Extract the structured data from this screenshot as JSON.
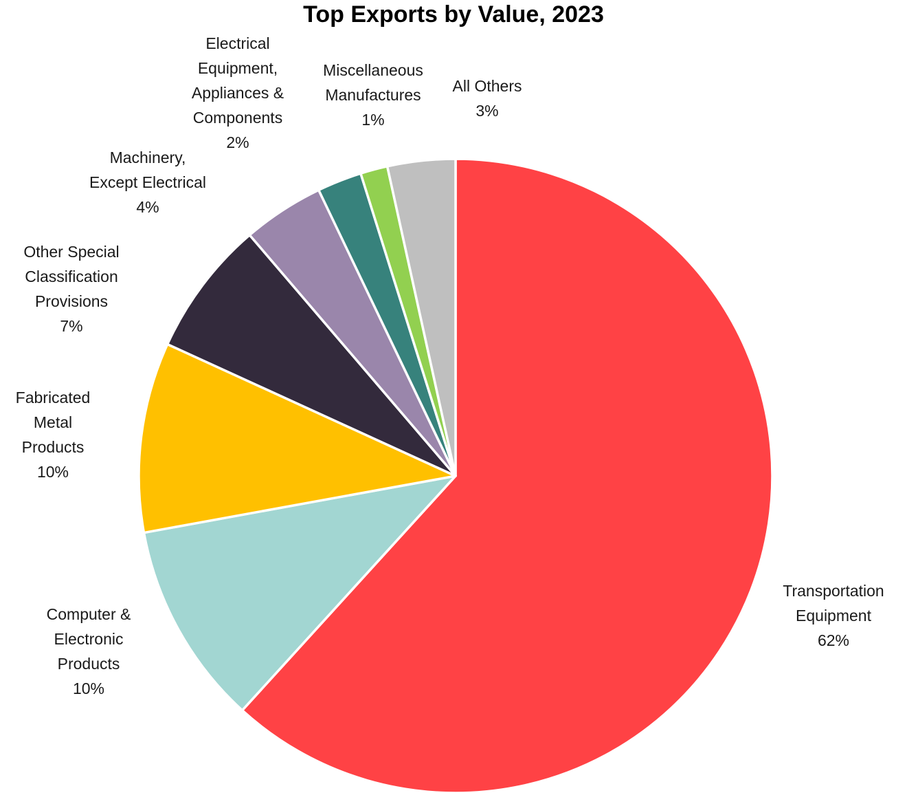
{
  "chart_data": {
    "type": "pie",
    "title": "Top Exports by Value, 2023",
    "slices": [
      {
        "label": [
          "Transportation",
          "Equipment"
        ],
        "pct_label": "62%",
        "value": 62.5,
        "color": "#FF4245"
      },
      {
        "label": [
          "Computer &",
          "Electronic",
          "Products"
        ],
        "pct_label": "10%",
        "value": 10.5,
        "color": "#A2D6D2"
      },
      {
        "label": [
          "Fabricated",
          "Metal",
          "Products"
        ],
        "pct_label": "10%",
        "value": 9.8,
        "color": "#FFC000"
      },
      {
        "label": [
          "Other Special",
          "Classification",
          "Provisions"
        ],
        "pct_label": "7%",
        "value": 7.0,
        "color": "#332A3C"
      },
      {
        "label": [
          "Machinery,",
          "Except Electrical"
        ],
        "pct_label": "4%",
        "value": 4.2,
        "color": "#9A86AB"
      },
      {
        "label": [
          "Electrical",
          "Equipment,",
          "Appliances &",
          "Components"
        ],
        "pct_label": "2%",
        "value": 2.3,
        "color": "#37827C"
      },
      {
        "label": [
          "Miscellaneous",
          "Manufactures"
        ],
        "pct_label": "1%",
        "value": 1.4,
        "color": "#92D050"
      },
      {
        "label": [
          "All Others"
        ],
        "pct_label": "3%",
        "value": 3.5,
        "color": "#BFBFBF"
      }
    ],
    "start_angle_deg": 0,
    "direction": "clockwise",
    "slice_border_color": "#FFFFFF"
  }
}
